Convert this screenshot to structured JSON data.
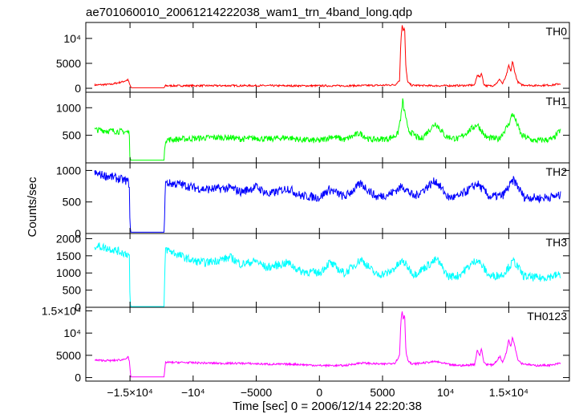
{
  "chart_data": {
    "type": "line",
    "title": "ae701060010_20061214222038_wam1_trn_4band_long.qdp",
    "xlabel": "Time [sec] 0 = 2006/12/14 22:20:38",
    "ylabel": "Counts/sec",
    "xlim": [
      -18500,
      19800
    ],
    "xticks": [
      {
        "value": -15000,
        "label": "−1.5×10⁴"
      },
      {
        "value": -10000,
        "label": "−10⁴"
      },
      {
        "value": -5000,
        "label": "−5000"
      },
      {
        "value": 0,
        "label": "0"
      },
      {
        "value": 5000,
        "label": "5000"
      },
      {
        "value": 10000,
        "label": "10⁴"
      },
      {
        "value": 15000,
        "label": "1.5×10⁴"
      }
    ],
    "gap": [
      -15050,
      -12200
    ],
    "panels": [
      {
        "name": "TH0",
        "color": "#ff0000",
        "ylim": [
          -800,
          13200
        ],
        "yticks": [
          {
            "value": 0,
            "label": "0"
          },
          {
            "value": 5000,
            "label": "5000"
          },
          {
            "value": 10000,
            "label": "10⁴"
          }
        ],
        "points": [
          [
            -17800,
            650
          ],
          [
            -16500,
            800
          ],
          [
            -15600,
            1300
          ],
          [
            -15150,
            1700
          ],
          [
            -15050,
            900
          ],
          [
            -14900,
            100
          ],
          [
            -12300,
            100
          ],
          [
            -12200,
            500
          ],
          [
            -10000,
            520
          ],
          [
            -8000,
            520
          ],
          [
            -6000,
            530
          ],
          [
            -4000,
            520
          ],
          [
            -2000,
            500
          ],
          [
            0,
            500
          ],
          [
            2000,
            500
          ],
          [
            3500,
            550
          ],
          [
            5000,
            600
          ],
          [
            6000,
            700
          ],
          [
            6350,
            1600
          ],
          [
            6450,
            9500
          ],
          [
            6550,
            12800
          ],
          [
            6650,
            11500
          ],
          [
            6750,
            12200
          ],
          [
            6850,
            4000
          ],
          [
            7000,
            1200
          ],
          [
            7300,
            600
          ],
          [
            9000,
            500
          ],
          [
            10500,
            520
          ],
          [
            11500,
            560
          ],
          [
            12300,
            650
          ],
          [
            12500,
            2700
          ],
          [
            12700,
            2200
          ],
          [
            12850,
            3100
          ],
          [
            13000,
            900
          ],
          [
            13200,
            500
          ],
          [
            13700,
            500
          ],
          [
            14000,
            950
          ],
          [
            14300,
            1800
          ],
          [
            14500,
            900
          ],
          [
            14800,
            2500
          ],
          [
            15000,
            4600
          ],
          [
            15150,
            3300
          ],
          [
            15300,
            5400
          ],
          [
            15500,
            3000
          ],
          [
            15700,
            1300
          ],
          [
            16000,
            700
          ],
          [
            17000,
            550
          ],
          [
            18500,
            650
          ],
          [
            19000,
            900
          ]
        ],
        "noise": 180
      },
      {
        "name": "TH1",
        "color": "#00ff00",
        "ylim": [
          0,
          1280
        ],
        "yticks": [
          {
            "value": 500,
            "label": "500"
          },
          {
            "value": 1000,
            "label": "1000"
          }
        ],
        "points": [
          [
            -17800,
            600
          ],
          [
            -15200,
            560
          ],
          [
            -15050,
            540
          ],
          [
            -15000,
            50
          ],
          [
            -12300,
            50
          ],
          [
            -12200,
            420
          ],
          [
            -11000,
            430
          ],
          [
            -8500,
            460
          ],
          [
            -7000,
            460
          ],
          [
            -6200,
            430
          ],
          [
            -5000,
            450
          ],
          [
            -4200,
            430
          ],
          [
            -2500,
            460
          ],
          [
            -1500,
            420
          ],
          [
            0,
            400
          ],
          [
            1000,
            480
          ],
          [
            2000,
            420
          ],
          [
            3200,
            540
          ],
          [
            4000,
            420
          ],
          [
            5500,
            440
          ],
          [
            6200,
            520
          ],
          [
            6500,
            900
          ],
          [
            6600,
            1150
          ],
          [
            6700,
            950
          ],
          [
            6800,
            900
          ],
          [
            7000,
            600
          ],
          [
            8000,
            420
          ],
          [
            9200,
            720
          ],
          [
            10000,
            480
          ],
          [
            11000,
            430
          ],
          [
            12500,
            700
          ],
          [
            13200,
            460
          ],
          [
            14200,
            430
          ],
          [
            15000,
            700
          ],
          [
            15300,
            900
          ],
          [
            15600,
            740
          ],
          [
            16000,
            500
          ],
          [
            17000,
            400
          ],
          [
            18500,
            430
          ],
          [
            19100,
            600
          ]
        ],
        "noise": 55
      },
      {
        "name": "TH2",
        "color": "#0000ff",
        "ylim": [
          0,
          1120
        ],
        "yticks": [
          {
            "value": 0,
            "label": "0"
          },
          {
            "value": 500,
            "label": "500"
          },
          {
            "value": 1000,
            "label": "1000"
          }
        ],
        "points": [
          [
            -17800,
            950
          ],
          [
            -16500,
            900
          ],
          [
            -15200,
            830
          ],
          [
            -15050,
            780
          ],
          [
            -15000,
            20
          ],
          [
            -12300,
            20
          ],
          [
            -12200,
            800
          ],
          [
            -11000,
            780
          ],
          [
            -10000,
            730
          ],
          [
            -9000,
            700
          ],
          [
            -7000,
            720
          ],
          [
            -6200,
            660
          ],
          [
            -5000,
            740
          ],
          [
            -4000,
            620
          ],
          [
            -2500,
            720
          ],
          [
            -1500,
            600
          ],
          [
            0,
            570
          ],
          [
            800,
            700
          ],
          [
            2000,
            580
          ],
          [
            3300,
            790
          ],
          [
            4500,
            580
          ],
          [
            5500,
            620
          ],
          [
            6600,
            750
          ],
          [
            7500,
            580
          ],
          [
            9200,
            840
          ],
          [
            10200,
            570
          ],
          [
            11000,
            580
          ],
          [
            12500,
            790
          ],
          [
            13500,
            580
          ],
          [
            14500,
            600
          ],
          [
            15400,
            850
          ],
          [
            16200,
            580
          ],
          [
            17500,
            560
          ],
          [
            19100,
            600
          ]
        ],
        "noise": 70
      },
      {
        "name": "TH3",
        "color": "#00ffff",
        "ylim": [
          0,
          2150
        ],
        "yticks": [
          {
            "value": 0,
            "label": "0"
          },
          {
            "value": 500,
            "label": "500"
          },
          {
            "value": 1000,
            "label": "1000"
          },
          {
            "value": 1500,
            "label": "1500"
          },
          {
            "value": 2000,
            "label": "2000"
          }
        ],
        "points": [
          [
            -17800,
            1800
          ],
          [
            -16500,
            1700
          ],
          [
            -15200,
            1550
          ],
          [
            -15050,
            1500
          ],
          [
            -15000,
            20
          ],
          [
            -12300,
            20
          ],
          [
            -12200,
            1700
          ],
          [
            -11000,
            1500
          ],
          [
            -10000,
            1350
          ],
          [
            -9000,
            1300
          ],
          [
            -7000,
            1450
          ],
          [
            -6200,
            1250
          ],
          [
            -5000,
            1350
          ],
          [
            -4200,
            1150
          ],
          [
            -2500,
            1300
          ],
          [
            -1500,
            1050
          ],
          [
            0,
            1000
          ],
          [
            800,
            1300
          ],
          [
            2000,
            980
          ],
          [
            3300,
            1400
          ],
          [
            4500,
            950
          ],
          [
            5500,
            1000
          ],
          [
            6600,
            1350
          ],
          [
            7500,
            950
          ],
          [
            9300,
            1400
          ],
          [
            10200,
            900
          ],
          [
            11000,
            920
          ],
          [
            12500,
            1400
          ],
          [
            13500,
            900
          ],
          [
            14500,
            950
          ],
          [
            15400,
            1350
          ],
          [
            16200,
            900
          ],
          [
            17500,
            850
          ],
          [
            19100,
            950
          ]
        ],
        "noise": 120
      },
      {
        "name": "TH0123",
        "color": "#ff00ff",
        "ylim": [
          -800,
          15800
        ],
        "yticks": [
          {
            "value": 0,
            "label": "0"
          },
          {
            "value": 5000,
            "label": "5000"
          },
          {
            "value": 10000,
            "label": "10⁴"
          },
          {
            "value": 15000,
            "label": "1.5×10⁴"
          }
        ],
        "points": [
          [
            -17800,
            3900
          ],
          [
            -16500,
            3800
          ],
          [
            -15600,
            4000
          ],
          [
            -15150,
            4600
          ],
          [
            -15050,
            3600
          ],
          [
            -14950,
            150
          ],
          [
            -12300,
            150
          ],
          [
            -12200,
            3400
          ],
          [
            -11000,
            3400
          ],
          [
            -8000,
            3200
          ],
          [
            -6000,
            3200
          ],
          [
            -4000,
            3000
          ],
          [
            -2000,
            3000
          ],
          [
            0,
            2700
          ],
          [
            2000,
            2700
          ],
          [
            3300,
            3300
          ],
          [
            5000,
            3000
          ],
          [
            6000,
            3300
          ],
          [
            6350,
            5000
          ],
          [
            6450,
            12500
          ],
          [
            6550,
            15000
          ],
          [
            6650,
            13000
          ],
          [
            6750,
            14500
          ],
          [
            6850,
            6000
          ],
          [
            7000,
            4000
          ],
          [
            7300,
            3000
          ],
          [
            9200,
            3600
          ],
          [
            10500,
            2800
          ],
          [
            11500,
            2700
          ],
          [
            12300,
            3000
          ],
          [
            12500,
            6200
          ],
          [
            12700,
            5000
          ],
          [
            12850,
            6500
          ],
          [
            13000,
            3600
          ],
          [
            13200,
            3000
          ],
          [
            13700,
            2800
          ],
          [
            14000,
            3600
          ],
          [
            14300,
            4800
          ],
          [
            14500,
            3300
          ],
          [
            14800,
            5600
          ],
          [
            15000,
            8500
          ],
          [
            15150,
            7000
          ],
          [
            15300,
            9200
          ],
          [
            15500,
            6800
          ],
          [
            15700,
            4200
          ],
          [
            16000,
            3200
          ],
          [
            17000,
            2700
          ],
          [
            18500,
            2800
          ],
          [
            19000,
            3200
          ]
        ],
        "noise": 220
      }
    ]
  }
}
